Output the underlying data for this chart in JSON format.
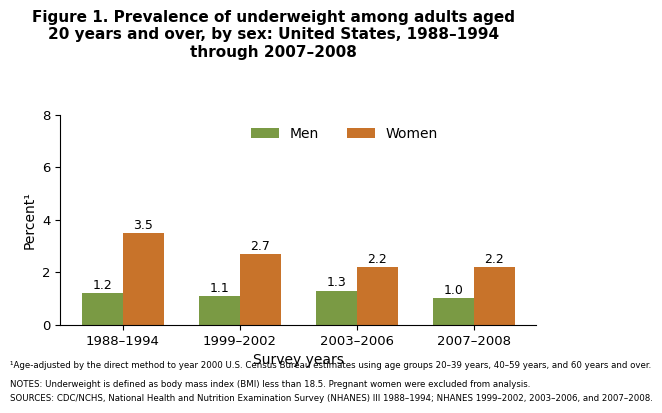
{
  "title": "Figure 1. Prevalence of underweight among adults aged\n20 years and over, by sex: United States, 1988–1994\nthrough 2007–2008",
  "xlabel": "Survey years",
  "ylabel": "Percent¹",
  "categories": [
    "1988–1994",
    "1999–2002",
    "2003–2006",
    "2007–2008"
  ],
  "men_values": [
    1.2,
    1.1,
    1.3,
    1.0
  ],
  "women_values": [
    3.5,
    2.7,
    2.2,
    2.2
  ],
  "men_color": "#7a9a44",
  "women_color": "#c8732a",
  "ylim": [
    0,
    8
  ],
  "yticks": [
    0,
    2,
    4,
    6,
    8
  ],
  "bar_width": 0.35,
  "legend_labels": [
    "Men",
    "Women"
  ],
  "footnote1": "¹Age-adjusted by the direct method to year 2000 U.S. Census Bureau estimates using age groups 20–39 years, 40–59 years, and 60 years and over.",
  "footnote2": "NOTES: Underweight is defined as body mass index (BMI) less than 18.5. Pregnant women were excluded from analysis.",
  "footnote3": "SOURCES: CDC/NCHS, National Health and Nutrition Examination Survey (NHANES) III 1988–1994; NHANES 1999–2002, 2003–2006, and 2007–2008.",
  "background_color": "#ffffff",
  "title_fontsize": 11,
  "axis_label_fontsize": 10,
  "tick_fontsize": 9.5,
  "value_label_fontsize": 9,
  "footnote_fontsize": 6.2,
  "legend_fontsize": 10
}
